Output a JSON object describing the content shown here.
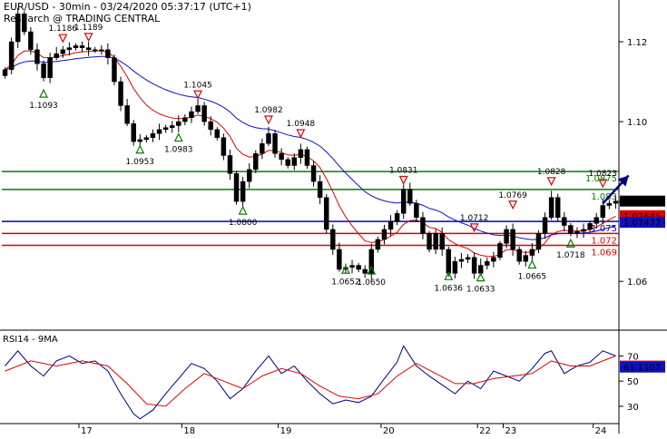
{
  "header": {
    "title": "EUR/USD - 30min - 03/24/2020 05:37:17 (UTC+1)",
    "subtitle": "Research @ TRADING CENTRAL"
  },
  "colors": {
    "candles": "#000000",
    "fast_ma": "#e00000",
    "slow_ma": "#1010c0",
    "resistance": "#008000",
    "pivot": "#0000cc",
    "support": "#dd0000",
    "arrow": "#000080"
  },
  "chart_data": [
    {
      "type": "candlestick",
      "title": "EUR/USD - 30min - 03/24/2020 05:37:17 (UTC+1)",
      "subtitle": "Research @ TRADING CENTRAL",
      "ylim": [
        1.048,
        1.13
      ],
      "y_ticks": [
        "1.12",
        "1.10",
        "1.08",
        "1.06"
      ],
      "y_tick_values": [
        1.12,
        1.1,
        1.08,
        1.06
      ],
      "x_ticks": [
        "17",
        "18",
        "19",
        "20",
        "22",
        "23",
        "24"
      ],
      "x_tick_index": [
        12,
        28,
        43,
        59,
        74,
        78,
        92
      ],
      "n_bars": 96,
      "grid": false,
      "close_path": [
        [
          0,
          1.113
        ],
        [
          2,
          1.127
        ],
        [
          4,
          1.118
        ],
        [
          6,
          1.111
        ],
        [
          7,
          1.116
        ],
        [
          9,
          1.118
        ],
        [
          11,
          1.119
        ],
        [
          13,
          1.118
        ],
        [
          15,
          1.118
        ],
        [
          16,
          1.116
        ],
        [
          18,
          1.104
        ],
        [
          20,
          1.095
        ],
        [
          22,
          1.096
        ],
        [
          24,
          1.098
        ],
        [
          26,
          1.099
        ],
        [
          28,
          1.101
        ],
        [
          30,
          1.104
        ],
        [
          31,
          1.1
        ],
        [
          33,
          1.096
        ],
        [
          35,
          1.087
        ],
        [
          36,
          1.08
        ],
        [
          37,
          1.085
        ],
        [
          38,
          1.088
        ],
        [
          39,
          1.092
        ],
        [
          41,
          1.097
        ],
        [
          42,
          1.092
        ],
        [
          44,
          1.089
        ],
        [
          45,
          1.091
        ],
        [
          46,
          1.093
        ],
        [
          48,
          1.085
        ],
        [
          49,
          1.081
        ],
        [
          50,
          1.073
        ],
        [
          51,
          1.068
        ],
        [
          52,
          1.063
        ],
        [
          54,
          1.064
        ],
        [
          56,
          1.062
        ],
        [
          57,
          1.068
        ],
        [
          59,
          1.073
        ],
        [
          61,
          1.077
        ],
        [
          62,
          1.083
        ],
        [
          64,
          1.076
        ],
        [
          66,
          1.068
        ],
        [
          67,
          1.072
        ],
        [
          68,
          1.068
        ],
        [
          69,
          1.062
        ],
        [
          70,
          1.065
        ],
        [
          72,
          1.066
        ],
        [
          73,
          1.062
        ],
        [
          74,
          1.064
        ],
        [
          76,
          1.066
        ],
        [
          78,
          1.073
        ],
        [
          79,
          1.068
        ],
        [
          80,
          1.065
        ],
        [
          82,
          1.068
        ],
        [
          84,
          1.076
        ],
        [
          85,
          1.081
        ],
        [
          86,
          1.076
        ],
        [
          88,
          1.072
        ],
        [
          90,
          1.073
        ],
        [
          92,
          1.076
        ],
        [
          93,
          1.079
        ],
        [
          95,
          1.0801
        ]
      ],
      "price_labels": [
        {
          "text": "1.1093",
          "bar": 6,
          "price": 1.1093,
          "kind": "low"
        },
        {
          "text": "1.1186",
          "bar": 9,
          "price": 1.1186,
          "kind": "high"
        },
        {
          "text": "1.1189",
          "bar": 13,
          "price": 1.1189,
          "kind": "high"
        },
        {
          "text": "1.0953",
          "bar": 21,
          "price": 1.0953,
          "kind": "low"
        },
        {
          "text": "1.1045",
          "bar": 30,
          "price": 1.1045,
          "kind": "high"
        },
        {
          "text": "1.0983",
          "bar": 27,
          "price": 1.0983,
          "kind": "low"
        },
        {
          "text": "1.0982",
          "bar": 41,
          "price": 1.0982,
          "kind": "high"
        },
        {
          "text": "1.0948",
          "bar": 46,
          "price": 1.0948,
          "kind": "high"
        },
        {
          "text": "1.0800",
          "bar": 37,
          "price": 1.08,
          "kind": "low"
        },
        {
          "text": "1.0831",
          "bar": 62,
          "price": 1.0831,
          "kind": "high"
        },
        {
          "text": "1.0652",
          "bar": 53,
          "price": 1.0652,
          "kind": "low"
        },
        {
          "text": "1.0650",
          "bar": 57,
          "price": 1.065,
          "kind": "low"
        },
        {
          "text": "1.0712",
          "bar": 73,
          "price": 1.0712,
          "kind": "high"
        },
        {
          "text": "1.0769",
          "bar": 79,
          "price": 1.0769,
          "kind": "high"
        },
        {
          "text": "1.0636",
          "bar": 69,
          "price": 1.0636,
          "kind": "low"
        },
        {
          "text": "1.0633",
          "bar": 74,
          "price": 1.0633,
          "kind": "low"
        },
        {
          "text": "1.0828",
          "bar": 85,
          "price": 1.0828,
          "kind": "high"
        },
        {
          "text": "1.0823",
          "bar": 93,
          "price": 1.0823,
          "kind": "high"
        },
        {
          "text": "1.0665",
          "bar": 82,
          "price": 1.0665,
          "kind": "low"
        },
        {
          "text": "1.0718",
          "bar": 88,
          "price": 1.0718,
          "kind": "low"
        }
      ],
      "levels": [
        {
          "label": "1.0875",
          "price": 1.0875,
          "color": "#008000"
        },
        {
          "label": "1.083",
          "price": 1.083,
          "color": "#008000"
        },
        {
          "label": "1.075",
          "price": 1.075,
          "color": "#0000cc"
        },
        {
          "label": "1.072",
          "price": 1.072,
          "color": "#dd0000"
        },
        {
          "label": "1.069",
          "price": 1.069,
          "color": "#dd0000"
        }
      ],
      "current_markers": [
        {
          "label": "1.0801",
          "price": 1.0801,
          "bg": "#000000",
          "fg": "#ffffff"
        },
        {
          "label": "1.07645",
          "price": 1.07645,
          "bg": "#dd0000",
          "fg": "#ffffff"
        },
        {
          "label": "1.07477",
          "price": 1.07477,
          "bg": "#1010c0",
          "fg": "#ffffff"
        }
      ],
      "projection": {
        "from": [
          93,
          1.0795
        ],
        "to": [
          97,
          1.0865
        ]
      }
    },
    {
      "type": "line",
      "title": "RSI14 - 9MA",
      "ylim": [
        17,
        89
      ],
      "y_ticks": [
        "70",
        "50",
        "30"
      ],
      "y_tick_values": [
        70,
        50,
        30
      ],
      "series": [
        {
          "color": "#000080",
          "points": [
            [
              0,
              62
            ],
            [
              2,
              74
            ],
            [
              4,
              62
            ],
            [
              6,
              54
            ],
            [
              8,
              66
            ],
            [
              10,
              70
            ],
            [
              12,
              64
            ],
            [
              14,
              66
            ],
            [
              16,
              58
            ],
            [
              18,
              40
            ],
            [
              20,
              24
            ],
            [
              21,
              20
            ],
            [
              23,
              27
            ],
            [
              25,
              40
            ],
            [
              27,
              52
            ],
            [
              29,
              64
            ],
            [
              31,
              60
            ],
            [
              33,
              50
            ],
            [
              35,
              36
            ],
            [
              37,
              44
            ],
            [
              39,
              58
            ],
            [
              41,
              70
            ],
            [
              43,
              56
            ],
            [
              45,
              62
            ],
            [
              47,
              50
            ],
            [
              49,
              40
            ],
            [
              51,
              32
            ],
            [
              53,
              35
            ],
            [
              55,
              33
            ],
            [
              57,
              38
            ],
            [
              59,
              52
            ],
            [
              61,
              65
            ],
            [
              62,
              78
            ],
            [
              64,
              62
            ],
            [
              66,
              54
            ],
            [
              68,
              47
            ],
            [
              70,
              40
            ],
            [
              72,
              50
            ],
            [
              74,
              44
            ],
            [
              76,
              58
            ],
            [
              78,
              54
            ],
            [
              80,
              50
            ],
            [
              82,
              60
            ],
            [
              84,
              72
            ],
            [
              85,
              74
            ],
            [
              87,
              56
            ],
            [
              89,
              62
            ],
            [
              91,
              65
            ],
            [
              93,
              74
            ],
            [
              95,
              70
            ]
          ]
        },
        {
          "color": "#e00000",
          "points": [
            [
              0,
              58
            ],
            [
              4,
              66
            ],
            [
              8,
              62
            ],
            [
              12,
              66
            ],
            [
              16,
              62
            ],
            [
              19,
              48
            ],
            [
              22,
              32
            ],
            [
              25,
              30
            ],
            [
              28,
              44
            ],
            [
              31,
              56
            ],
            [
              34,
              50
            ],
            [
              37,
              44
            ],
            [
              40,
              54
            ],
            [
              43,
              60
            ],
            [
              46,
              56
            ],
            [
              49,
              46
            ],
            [
              52,
              38
            ],
            [
              55,
              36
            ],
            [
              58,
              40
            ],
            [
              61,
              54
            ],
            [
              64,
              64
            ],
            [
              67,
              56
            ],
            [
              70,
              48
            ],
            [
              73,
              48
            ],
            [
              76,
              52
            ],
            [
              79,
              54
            ],
            [
              82,
              56
            ],
            [
              85,
              66
            ],
            [
              88,
              62
            ],
            [
              91,
              62
            ],
            [
              93,
              66
            ],
            [
              95,
              70
            ]
          ]
        }
      ],
      "current_markers": [
        {
          "label": "61.9289",
          "value": 61.9289,
          "bg": "#dd0000",
          "fg": "#ffffff"
        },
        {
          "label": "61.1107",
          "value": 61.1107,
          "bg": "#1010c0",
          "fg": "#ffffff"
        }
      ]
    }
  ]
}
